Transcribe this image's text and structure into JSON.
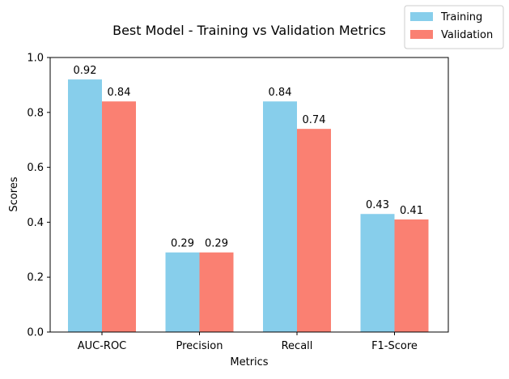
{
  "chart_data": {
    "type": "bar",
    "title": "Best Model - Training vs Validation Metrics",
    "xlabel": "Metrics",
    "ylabel": "Scores",
    "categories": [
      "AUC-ROC",
      "Precision",
      "Recall",
      "F1-Score"
    ],
    "series": [
      {
        "name": "Training",
        "color": "#87CEEB",
        "values": [
          0.92,
          0.29,
          0.84,
          0.43
        ],
        "labels": [
          "0.92",
          "0.29",
          "0.84",
          "0.43"
        ]
      },
      {
        "name": "Validation",
        "color": "#FA8072",
        "values": [
          0.84,
          0.29,
          0.74,
          0.41
        ],
        "labels": [
          "0.84",
          "0.29",
          "0.74",
          "0.41"
        ]
      }
    ],
    "ylim": [
      0,
      1.0
    ],
    "yticks": [
      0.0,
      0.2,
      0.4,
      0.6,
      0.8,
      1.0
    ],
    "ytick_labels": [
      "0.0",
      "0.2",
      "0.4",
      "0.6",
      "0.8",
      "1.0"
    ],
    "grid": false,
    "legend_placement": "top-right"
  }
}
